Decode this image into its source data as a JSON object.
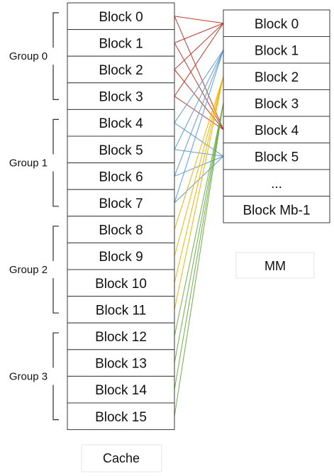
{
  "cache": {
    "caption": "Cache",
    "blocks": [
      "Block 0",
      "Block 1",
      "Block 2",
      "Block 3",
      "Block 4",
      "Block 5",
      "Block 6",
      "Block 7",
      "Block 8",
      "Block 9",
      "Block 10",
      "Block 11",
      "Block 12",
      "Block 13",
      "Block 14",
      "Block 15"
    ]
  },
  "groups": [
    {
      "label": "Group 0",
      "color": "#c0392b"
    },
    {
      "label": "Group 1",
      "color": "#5b9bd5"
    },
    {
      "label": "Group 2",
      "color": "#f0b400"
    },
    {
      "label": "Group 3",
      "color": "#70ad47"
    }
  ],
  "mm": {
    "caption": "MM",
    "blocks": [
      "Block 0",
      "Block 1",
      "Block 2",
      "Block 3",
      "Block 4",
      "Block 5",
      "...",
      "Block Mb-1"
    ]
  },
  "mapping": [
    {
      "group": 0,
      "cache_blocks": [
        0,
        1,
        2,
        3
      ],
      "mm_blocks": [
        0,
        4
      ]
    },
    {
      "group": 1,
      "cache_blocks": [
        4,
        5,
        6,
        7
      ],
      "mm_blocks": [
        1,
        5
      ]
    },
    {
      "group": 2,
      "cache_blocks": [
        8,
        9,
        10,
        11
      ],
      "mm_blocks": [
        2
      ]
    },
    {
      "group": 3,
      "cache_blocks": [
        12,
        13,
        14,
        15
      ],
      "mm_blocks": [
        3
      ]
    }
  ]
}
